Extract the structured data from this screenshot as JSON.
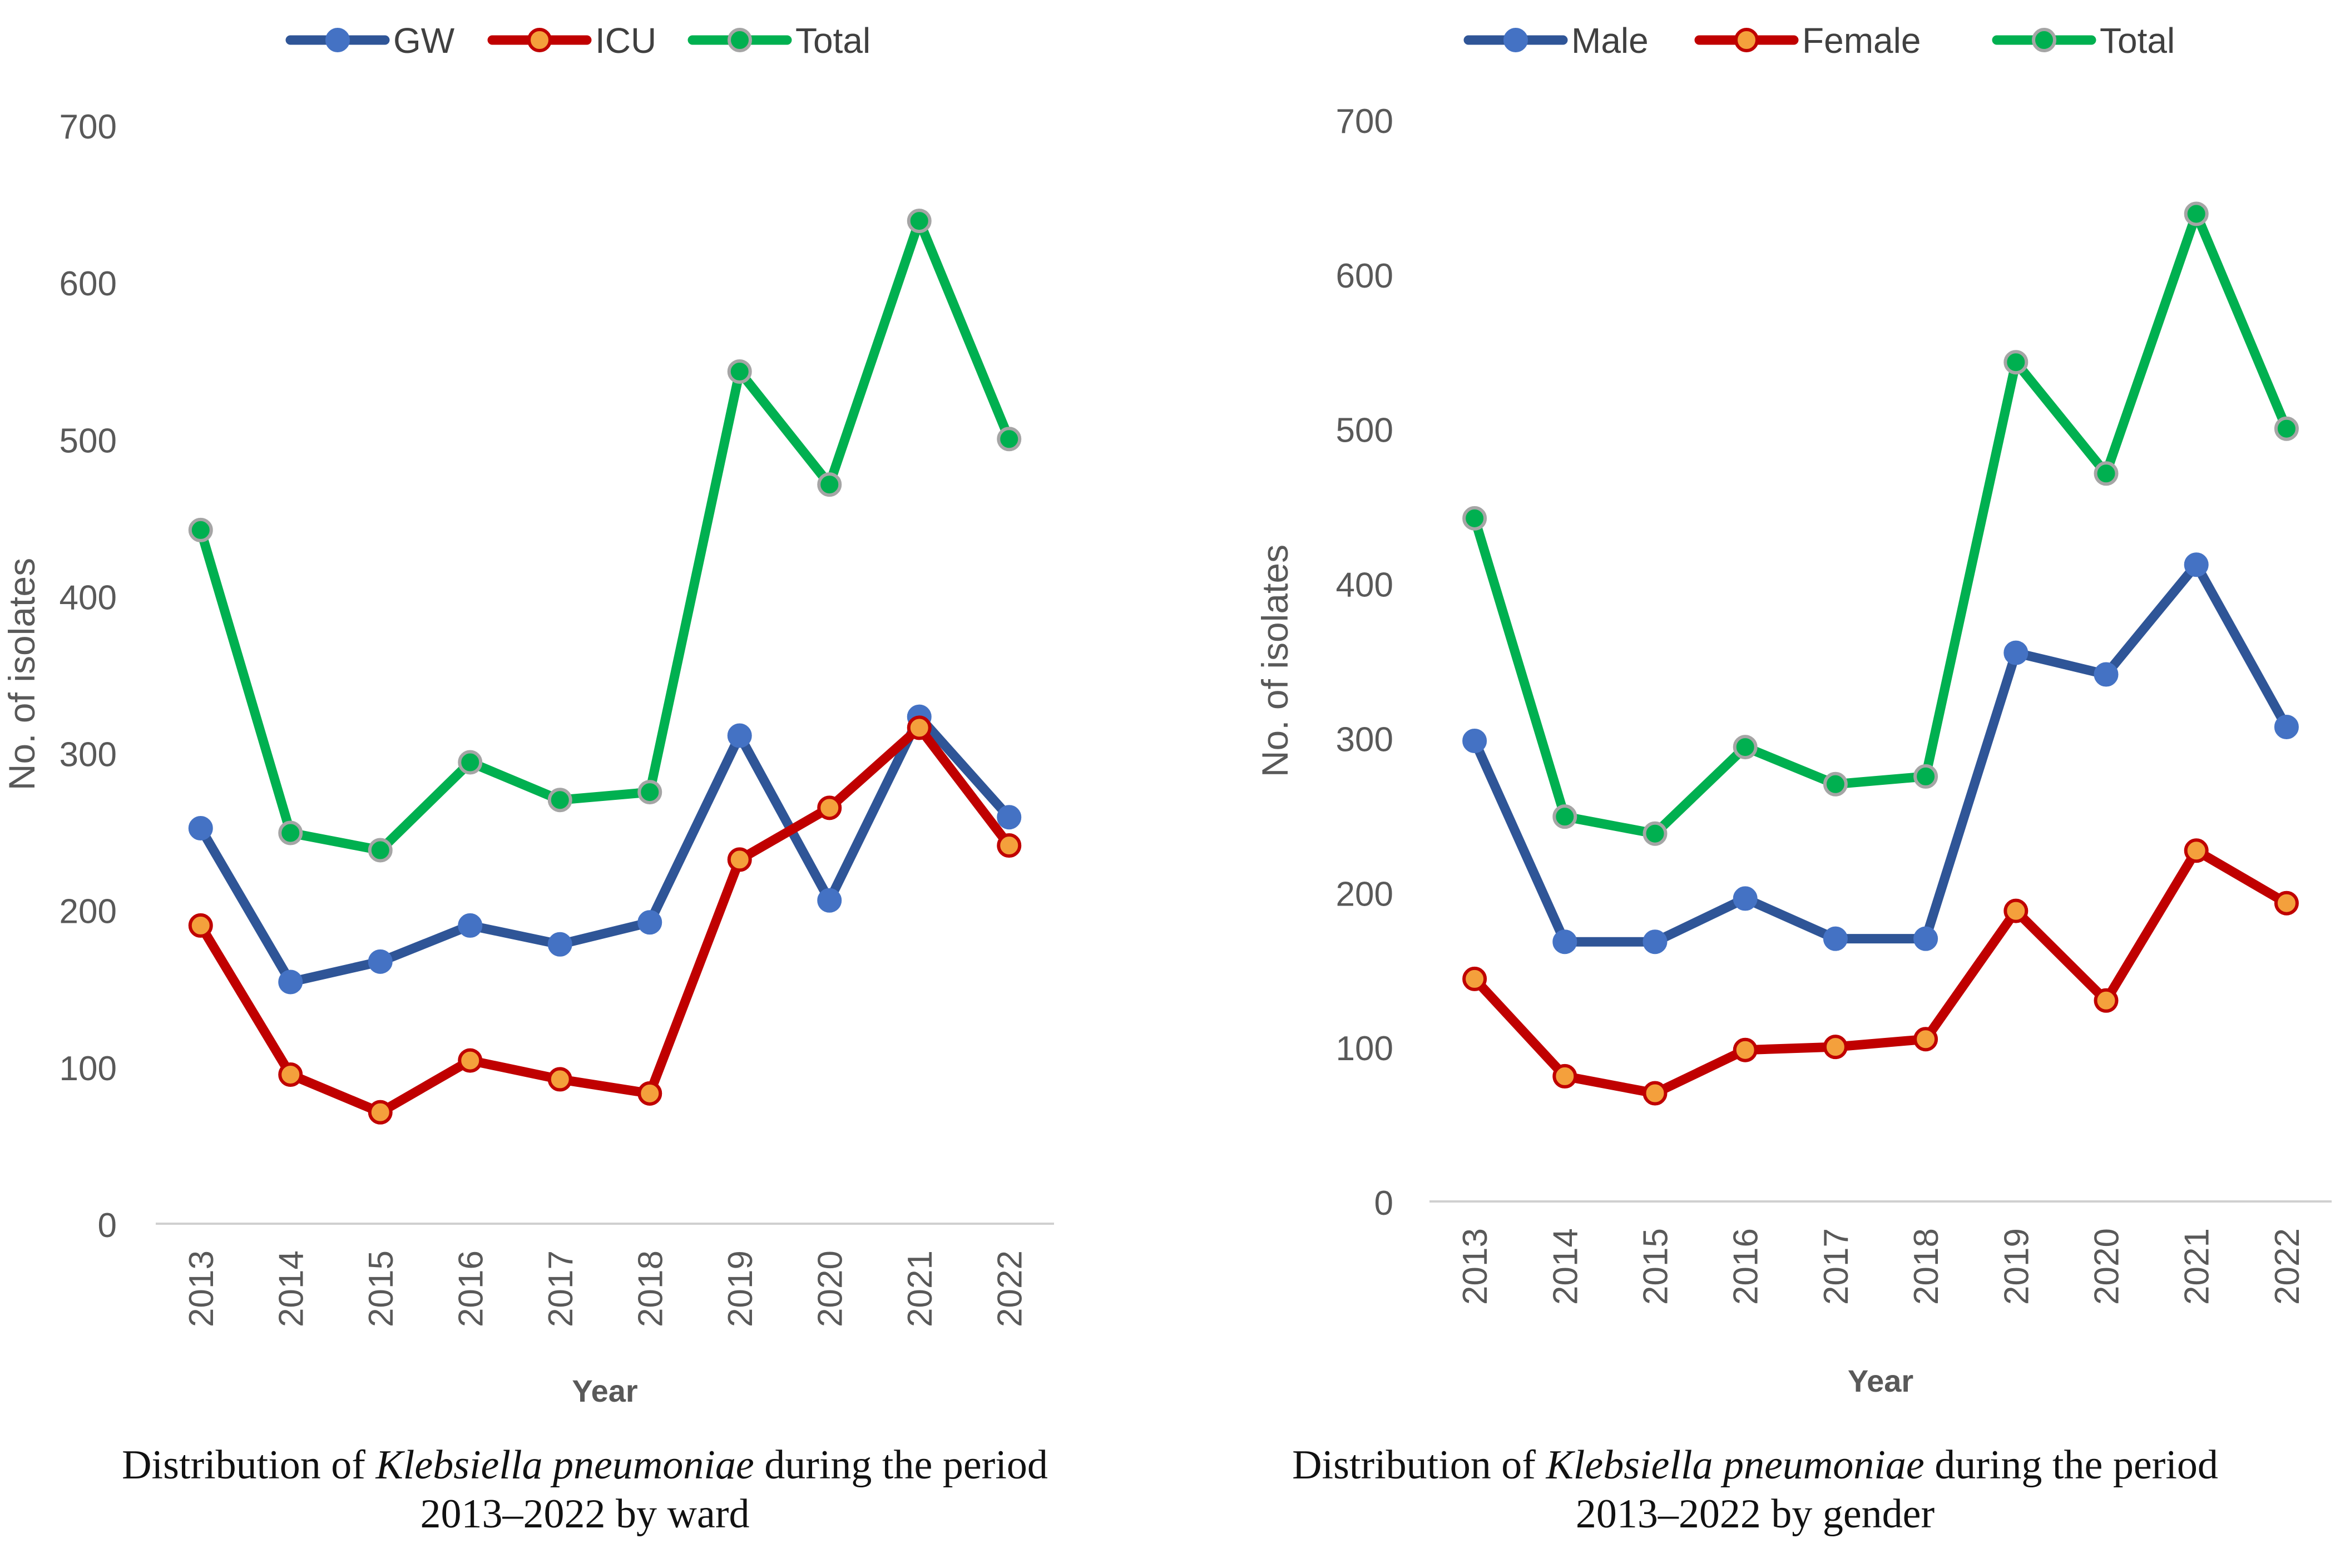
{
  "chart_data": [
    {
      "type": "line",
      "title": "",
      "xlabel": "Year",
      "ylabel": "No. of isolates",
      "ylim": [
        0,
        700
      ],
      "yticks": [
        0,
        100,
        200,
        300,
        400,
        500,
        600,
        700
      ],
      "categories": [
        "2013",
        "2014",
        "2015",
        "2016",
        "2017",
        "2018",
        "2019",
        "2020",
        "2021",
        "2022"
      ],
      "legend_position": "top-center",
      "grid": false,
      "series": [
        {
          "name": "GW",
          "line_color": "#2f5597",
          "marker_color": "#4472c4",
          "marker_edge": "#4472c4",
          "values": [
            252,
            154,
            167,
            190,
            178,
            192,
            311,
            206,
            323,
            259
          ]
        },
        {
          "name": "ICU",
          "line_color": "#c00000",
          "marker_color": "#f4a03c",
          "marker_edge": "#c00000",
          "values": [
            190,
            95,
            71,
            104,
            92,
            83,
            232,
            265,
            316,
            241
          ]
        },
        {
          "name": "Total",
          "line_color": "#00b050",
          "marker_color": "#00b050",
          "marker_edge": "#a5a5a5",
          "values": [
            442,
            249,
            238,
            294,
            270,
            275,
            543,
            471,
            639,
            500
          ]
        }
      ],
      "caption": {
        "prefix": "Distribution of ",
        "italic": "Klebsiella pneumoniae",
        "suffix": " during the period",
        "line2": "2013–2022 by ward"
      }
    },
    {
      "type": "line",
      "title": "",
      "xlabel": "Year",
      "ylabel": "No. of isolates",
      "ylim": [
        0,
        700
      ],
      "yticks": [
        0,
        100,
        200,
        300,
        400,
        500,
        600,
        700
      ],
      "categories": [
        "2013",
        "2014",
        "2015",
        "2016",
        "2017",
        "2018",
        "2019",
        "2020",
        "2021",
        "2022"
      ],
      "legend_position": "top-center",
      "grid": false,
      "series": [
        {
          "name": "Male",
          "line_color": "#2f5597",
          "marker_color": "#4472c4",
          "marker_edge": "#4472c4",
          "values": [
            298,
            168,
            168,
            196,
            170,
            170,
            355,
            341,
            412,
            307
          ]
        },
        {
          "name": "Female",
          "line_color": "#c00000",
          "marker_color": "#f4a03c",
          "marker_edge": "#c00000",
          "values": [
            144,
            81,
            70,
            98,
            100,
            105,
            188,
            130,
            227,
            193
          ]
        },
        {
          "name": "Total",
          "line_color": "#00b050",
          "marker_color": "#00b050",
          "marker_edge": "#a5a5a5",
          "values": [
            442,
            249,
            238,
            294,
            270,
            275,
            543,
            471,
            639,
            500
          ]
        }
      ],
      "caption": {
        "prefix": "Distribution of ",
        "italic": "Klebsiella pneumoniae",
        "suffix": " during the period",
        "line2": "2013–2022 by gender"
      }
    }
  ]
}
